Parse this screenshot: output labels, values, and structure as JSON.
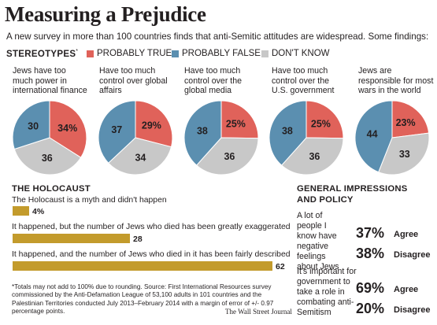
{
  "title": "Measuring a Prejudice",
  "subtitle": "A new survey in more than 100 countries finds that anti-Semitic attitudes are widespread. Some findings:",
  "legend": {
    "title": "STEREOTYPES",
    "title_mark": "*",
    "items": [
      {
        "label": "PROBABLY TRUE",
        "color": "#e0625a"
      },
      {
        "label": "PROBABLY FALSE",
        "color": "#5b8fb0"
      },
      {
        "label": "DON'T KNOW",
        "color": "#c8c8c8"
      }
    ]
  },
  "holocaust": {
    "heading": "THE HOLOCAUST"
  },
  "general": {
    "heading_line1": "GENERAL IMPRESSIONS",
    "heading_line2": "AND POLICY",
    "items": [
      {
        "text": "A lot of people I know have negative feelings about Jews",
        "rows": [
          {
            "value": "37%",
            "label": "Agree"
          },
          {
            "value": "38%",
            "label": "Disagree"
          }
        ]
      },
      {
        "text": "It's important for government to take a role in combating anti-Semitism",
        "rows": [
          {
            "value": "69%",
            "label": "Agree"
          },
          {
            "value": "20%",
            "label": "Disagree"
          }
        ]
      }
    ]
  },
  "footnote": "*Totals may not add to 100% due to rounding.     Source: First International Resources survey commissioned by the Anti-Defamation League of 53,100 adults in 101 countries and the Palestinian Territories conducted July 2013–February 2014 with a margin of error of +/- 0.97 percentage points.",
  "credit": "The Wall Street Journal",
  "chart_data": [
    {
      "type": "pie",
      "colors": {
        "Probably true": "#e0625a",
        "Probably false": "#5b8fb0",
        "Don't know": "#c8c8c8"
      },
      "pies": [
        {
          "question": "Jews have too much power in international finance",
          "slices": [
            {
              "name": "Probably true",
              "value": 34,
              "label": "34%"
            },
            {
              "name": "Don't know",
              "value": 36,
              "label": "36"
            },
            {
              "name": "Probably false",
              "value": 30,
              "label": "30"
            }
          ]
        },
        {
          "question": "Have too much control over global affairs",
          "slices": [
            {
              "name": "Probably true",
              "value": 29,
              "label": "29%"
            },
            {
              "name": "Don't know",
              "value": 34,
              "label": "34"
            },
            {
              "name": "Probably false",
              "value": 37,
              "label": "37"
            }
          ]
        },
        {
          "question": "Have too much control over the global media",
          "slices": [
            {
              "name": "Probably true",
              "value": 25,
              "label": "25%"
            },
            {
              "name": "Don't know",
              "value": 36,
              "label": "36"
            },
            {
              "name": "Probably false",
              "value": 38,
              "label": "38"
            }
          ]
        },
        {
          "question": "Have too much control over the U.S. government",
          "slices": [
            {
              "name": "Probably true",
              "value": 25,
              "label": "25%"
            },
            {
              "name": "Don't know",
              "value": 36,
              "label": "36"
            },
            {
              "name": "Probably false",
              "value": 38,
              "label": "38"
            }
          ]
        },
        {
          "question": "Jews are responsible for most wars in the world",
          "slices": [
            {
              "name": "Probably true",
              "value": 23,
              "label": "23%"
            },
            {
              "name": "Don't know",
              "value": 33,
              "label": "33"
            },
            {
              "name": "Probably false",
              "value": 44,
              "label": "44"
            }
          ]
        }
      ]
    },
    {
      "type": "bar",
      "orientation": "horizontal",
      "color": "#c39b2c",
      "categories": [
        "The Holocaust is a myth and didn't happen",
        "It happened, but the number of Jews who died has been greatly exaggerated",
        "It happened, and the number of Jews who died in it has been fairly described"
      ],
      "values": [
        4,
        28,
        62
      ],
      "value_labels": [
        "4%",
        "28",
        "62"
      ]
    }
  ]
}
